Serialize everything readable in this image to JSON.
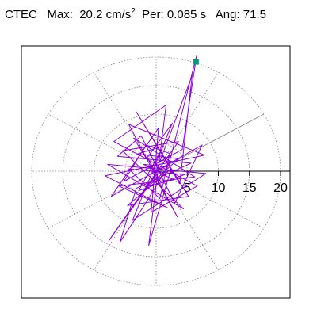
{
  "title": {
    "station": "CTEC",
    "max_label": "Max:",
    "max_value": "20.2",
    "max_unit": "cm/s",
    "max_unit_exp": "2",
    "per_label": "Per:",
    "per_value": "0.085 s",
    "ang_label": "Ang:",
    "ang_value": "71.5"
  },
  "chart_data": {
    "type": "polar-particle-motion",
    "radial_ticks": [
      5,
      10,
      15,
      20
    ],
    "radial_max": 21,
    "angular_grid_deg": [
      0,
      30,
      60,
      90,
      120,
      150,
      180,
      210,
      240,
      270,
      300,
      330
    ],
    "peak": {
      "amplitude": 20.2,
      "angle_deg": 71.5,
      "marker_color": "#009c7c"
    },
    "trace_color": "#8c00d6",
    "grid_color": "#808080",
    "direction_line_deg": 30,
    "trace_points": [
      [
        0,
        0
      ],
      [
        1.5,
        0.8
      ],
      [
        -2,
        1.2
      ],
      [
        2.8,
        -1.5
      ],
      [
        -1.2,
        -2.6
      ],
      [
        3.6,
        2.2
      ],
      [
        -3.1,
        3
      ],
      [
        1.2,
        4.4
      ],
      [
        -2.8,
        -3.4
      ],
      [
        4.6,
        -0.6
      ],
      [
        -4.4,
        0.4
      ],
      [
        0.6,
        -4.8
      ],
      [
        2.2,
        3.1
      ],
      [
        -1.6,
        4.6
      ],
      [
        -5.2,
        -1.8
      ],
      [
        4.2,
        3.8
      ],
      [
        6.5,
        20.2
      ],
      [
        2,
        1
      ],
      [
        -1.8,
        -5.8
      ],
      [
        -5.8,
        -12.4
      ],
      [
        -3.2,
        -3
      ],
      [
        5.6,
        1.4
      ],
      [
        -6.2,
        2.6
      ],
      [
        -2.4,
        6.2
      ],
      [
        3,
        -5.6
      ],
      [
        7.4,
        4.6
      ],
      [
        -7.2,
        -4.4
      ],
      [
        0.4,
        7.6
      ],
      [
        -0.8,
        -7.2
      ],
      [
        6.6,
        -2.6
      ],
      [
        -6.8,
        5.2
      ],
      [
        1.6,
        11.6
      ],
      [
        -1.2,
        -13
      ],
      [
        2.4,
        0.4
      ],
      [
        -4.6,
        -6
      ],
      [
        5.2,
        -4.4
      ],
      [
        -3.2,
        10.4
      ],
      [
        3.8,
        -2.2
      ],
      [
        5.8,
        16.8
      ],
      [
        -0.4,
        -1.2
      ],
      [
        -7.6,
        -12.2
      ],
      [
        -2.4,
        -4
      ],
      [
        3.6,
        5.2
      ],
      [
        -5.4,
        3.6
      ],
      [
        4.4,
        -6.6
      ],
      [
        -7.8,
        1.2
      ],
      [
        8,
        -0.4
      ],
      [
        -3.8,
        -8.6
      ],
      [
        2.6,
        8.4
      ],
      [
        -1.4,
        2.4
      ],
      [
        0.8,
        -2
      ],
      [
        -3.6,
        5.8
      ],
      [
        6.2,
        -1
      ],
      [
        -6,
        -2.6
      ],
      [
        1.8,
        -6.4
      ],
      [
        -8.2,
        -0.8
      ],
      [
        7.8,
        2.8
      ],
      [
        -4.4,
        8.2
      ],
      [
        3.4,
        -8
      ],
      [
        -1,
        0.6
      ],
      [
        0,
        0
      ]
    ]
  }
}
